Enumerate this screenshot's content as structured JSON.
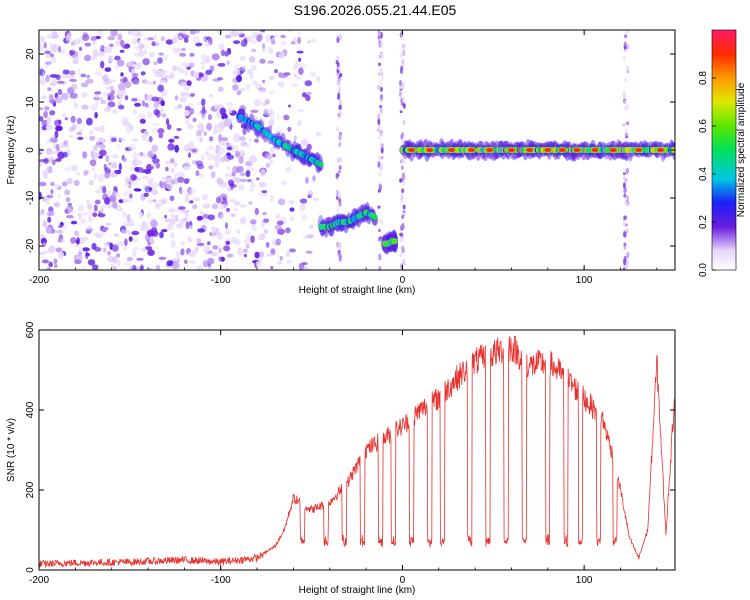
{
  "title": "S196.2026.055.21.44.E05",
  "colors": {
    "line": "#e8302c",
    "points": "#7a2de0",
    "points_light": "#c7a8f2",
    "frame": "#000000"
  },
  "chart_data": [
    {
      "type": "scatter",
      "name": "spectrogram",
      "xlabel": "Height of straight line (km)",
      "ylabel": "Frequency (Hz)",
      "xlim": [
        -200,
        150
      ],
      "ylim": [
        -25,
        25
      ],
      "xticks": [
        -200,
        -100,
        0,
        100
      ],
      "xtick_labels": [
        "-200",
        "-100",
        "0",
        "100"
      ],
      "yticks": [
        -20,
        -10,
        0,
        10,
        20
      ],
      "ytick_labels": [
        "-20",
        "-10",
        "0",
        "10",
        "20"
      ],
      "colorbar": {
        "label": "Normalized spectral amplitude",
        "range": [
          0,
          1
        ],
        "ticks": [
          0.0,
          0.2,
          0.4,
          0.6,
          0.8
        ],
        "tick_labels": [
          "0.0",
          "0.2",
          "0.4",
          "0.6",
          "0.8"
        ]
      },
      "noise_region": [
        -200,
        -45
      ],
      "tracks": [
        {
          "x": [
            -90,
            -80,
            -70,
            -60,
            -55,
            -50,
            -45
          ],
          "y": [
            7,
            5,
            2,
            0,
            -1,
            -2,
            -3
          ],
          "peak_amplitude": 0.7
        },
        {
          "x": [
            -45,
            -40,
            -35,
            -30,
            -25,
            -20,
            -15
          ],
          "y": [
            -16,
            -16,
            -15,
            -15,
            -14,
            -13,
            -14
          ],
          "peak_amplitude": 0.8
        },
        {
          "x": [
            -10,
            -8,
            -6,
            -4
          ],
          "y": [
            -19.5,
            -19.5,
            -19,
            -19
          ],
          "peak_amplitude": 0.95
        },
        {
          "x": [
            0,
            150
          ],
          "y": [
            0,
            0
          ],
          "peak_amplitude": 1.0
        }
      ],
      "bright_spots_x": [
        5,
        15,
        27,
        38,
        48,
        60,
        70,
        80,
        88,
        96,
        106,
        116,
        130,
        142
      ],
      "vertical_streaks_x": [
        -35,
        -12,
        0,
        123
      ]
    },
    {
      "type": "line",
      "name": "snr",
      "xlabel": "Height of straight line (km)",
      "ylabel": "SNR (10 * v/v)",
      "xlim": [
        -200,
        150
      ],
      "ylim": [
        0,
        600
      ],
      "xticks": [
        -200,
        -100,
        0,
        100
      ],
      "xtick_labels": [
        "-200",
        "-100",
        "0",
        "100"
      ],
      "yticks": [
        0,
        200,
        400,
        600
      ],
      "ytick_labels": [
        "0",
        "200",
        "400",
        "600"
      ],
      "envelope": {
        "x": [
          -200,
          -180,
          -150,
          -120,
          -100,
          -80,
          -70,
          -65,
          -60,
          -50,
          -40,
          -30,
          -20,
          -10,
          0,
          10,
          20,
          30,
          40,
          50,
          60,
          70,
          80,
          90,
          100,
          110,
          115,
          120,
          125,
          130,
          135,
          140,
          145,
          150
        ],
        "y": [
          15,
          18,
          20,
          25,
          20,
          30,
          60,
          100,
          180,
          150,
          170,
          220,
          300,
          330,
          360,
          400,
          430,
          480,
          520,
          540,
          560,
          510,
          520,
          480,
          430,
          380,
          300,
          200,
          80,
          30,
          100,
          520,
          90,
          450
        ]
      },
      "dips_x": [
        -55,
        -42,
        -32,
        -22,
        -12,
        -5,
        5,
        15,
        22,
        37,
        47,
        57,
        67,
        80,
        90,
        98,
        108,
        117
      ],
      "dip_value": 60
    }
  ]
}
